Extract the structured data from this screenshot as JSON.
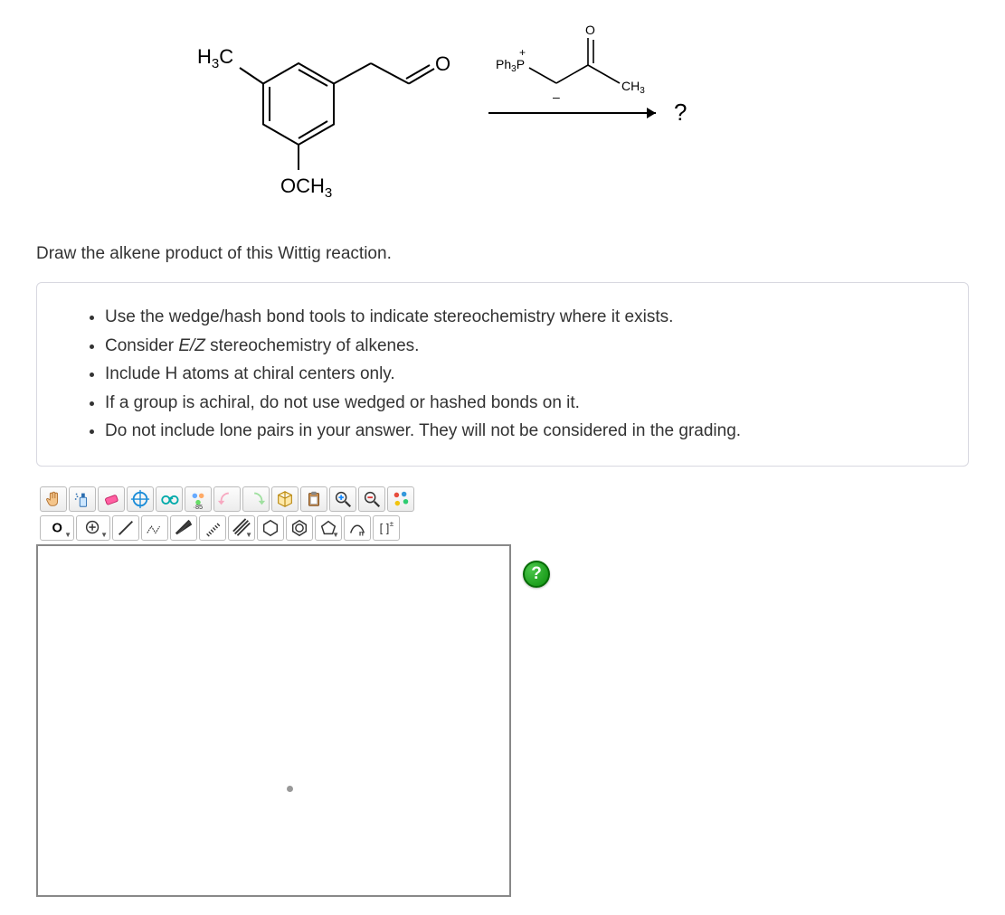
{
  "reaction": {
    "reactant": {
      "ring_substituents": {
        "top_left": "H3C",
        "top_right_chain_end": "O",
        "bottom": "OCH3"
      },
      "svg_colors": {
        "stroke": "#000000",
        "background": "#ffffff"
      }
    },
    "reagent": {
      "labels": {
        "left": "Ph3P",
        "left_charge": "+",
        "right": "CH3",
        "top": "O",
        "bottom_bar": "–"
      },
      "svg_colors": {
        "stroke": "#000000"
      }
    },
    "arrow_target": "?"
  },
  "prompt_text": "Draw the alkene product of this Wittig reaction.",
  "instructions": [
    {
      "pre": "Use the wedge/hash bond tools to indicate stereochemistry where it exists.",
      "em": "",
      "post": ""
    },
    {
      "pre": "Consider ",
      "em": "E/Z",
      "post": " stereochemistry of alkenes."
    },
    {
      "pre": "Include H atoms at chiral centers only.",
      "em": "",
      "post": ""
    },
    {
      "pre": "If a group is achiral, do not use wedged or hashed bonds on it.",
      "em": "",
      "post": ""
    },
    {
      "pre": "Do not include lone pairs in your answer. They will not be considered in the grading.",
      "em": "",
      "post": ""
    }
  ],
  "toolbar_row1": [
    {
      "name": "pan-hand-icon",
      "glyph": "hand"
    },
    {
      "name": "spray-icon",
      "glyph": "spray"
    },
    {
      "name": "eraser-icon",
      "glyph": "eraser"
    },
    {
      "name": "crosshair-icon",
      "glyph": "crosshair"
    },
    {
      "name": "glasses-icon",
      "glyph": "glasses"
    },
    {
      "name": "group-icon",
      "glyph": "group"
    },
    {
      "name": "undo-icon",
      "glyph": "undo"
    },
    {
      "name": "redo-icon",
      "glyph": "redo"
    },
    {
      "name": "cube3d-icon",
      "glyph": "cube"
    },
    {
      "name": "paste-icon",
      "glyph": "paste"
    },
    {
      "name": "zoom-in-icon",
      "glyph": "zoomin"
    },
    {
      "name": "zoom-out-icon",
      "glyph": "zoomout"
    },
    {
      "name": "palette-icon",
      "glyph": "palette"
    }
  ],
  "toolbar_row2": [
    {
      "name": "atom-dropdown",
      "glyph": "atomO",
      "label": "O"
    },
    {
      "name": "add-dropdown",
      "glyph": "plus"
    },
    {
      "name": "single-bond-icon",
      "glyph": "sbond"
    },
    {
      "name": "chain-bond-icon",
      "glyph": "chain"
    },
    {
      "name": "wedge-bond-icon",
      "glyph": "wedge"
    },
    {
      "name": "hash-bond-icon",
      "glyph": "hash"
    },
    {
      "name": "multi-bond-dropdown",
      "glyph": "multi"
    },
    {
      "name": "hexagon-icon",
      "glyph": "hex"
    },
    {
      "name": "benzene-icon",
      "glyph": "benz"
    },
    {
      "name": "ring-dropdown",
      "glyph": "pent"
    },
    {
      "name": "curve-n-icon",
      "glyph": "curven"
    },
    {
      "name": "charge-icon",
      "glyph": "charge"
    }
  ],
  "help_badge": "?",
  "colors": {
    "instruction_border": "#d8d8e0",
    "tool_border": "#bbbbbb",
    "canvas_border": "#888888",
    "help_green_light": "#4bc74b",
    "help_green_dark": "#0c8f0c",
    "undo_pink": "#f7a8c0",
    "redo_green": "#9fe09f",
    "eraser_pink": "#ff5fa2"
  }
}
